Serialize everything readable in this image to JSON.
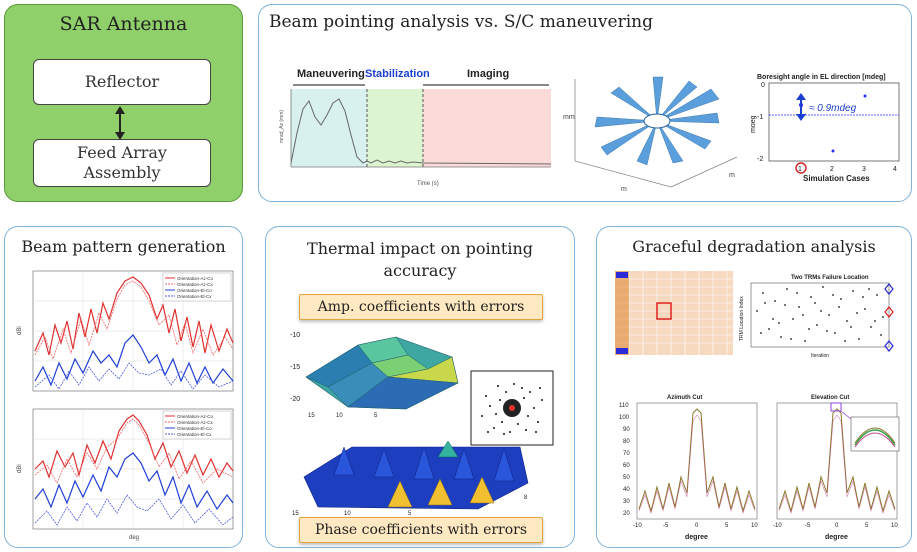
{
  "sar": {
    "title": "SAR Antenna",
    "reflector": "Reflector",
    "feed_line1": "Feed Array",
    "feed_line2": "Assembly"
  },
  "beam_pointing": {
    "title": "Beam pointing analysis vs. S/C maneuvering",
    "phases": [
      "Maneuvering",
      "Stabilization",
      "Imaging"
    ],
    "time_xlabel": "Time (s)",
    "time_ylabel": "mrad_Az (mm)",
    "plot3d_zlabel": "mm",
    "plot3d_xlabel": "m",
    "plot3d_ylabel": "m",
    "boresight_title": "Boresight angle in EL direction [mdeg]",
    "boresight_annotation": "≈ 0.9mdeg",
    "boresight_xlabel": "Simulation Cases",
    "boresight_ylabel": "mdeg",
    "boresight_ticks_x": [
      "1",
      "2",
      "3",
      "4"
    ],
    "boresight_ticks_y": [
      "0",
      "-1",
      "-2"
    ],
    "highlighted_case": "1"
  },
  "beam_pattern": {
    "title": "Beam pattern generation",
    "xlabel": "deg",
    "ylabel": "dBi",
    "legend_top": [
      "Orientation-Az-Co",
      "Orientation-Az-Cx",
      "Orientation-El-Co",
      "Orientation-El-Cx"
    ],
    "legend_bottom": [
      "Orientation-Az-Co",
      "Orientation-Az-Cx",
      "Orientation-El-Co",
      "Orientation-El-Cx"
    ]
  },
  "thermal": {
    "title_line1": "Thermal impact on pointing",
    "title_line2": "accuracy",
    "amp_label": "Amp. coefficients with errors",
    "phase_label": "Phase coefficients with errors"
  },
  "graceful": {
    "title": "Graceful degradation analysis",
    "failure_title": "Two TRMs Failure Location",
    "failure_xlabel": "Iteration",
    "failure_ylabel": "TRM Location Index",
    "azimuth_title": "Azimuth Cut",
    "elevation_title": "Elevation Cut",
    "cut_xlabel": "degree",
    "cut_yticks": [
      "110",
      "100",
      "90",
      "80",
      "70",
      "60",
      "50",
      "40",
      "30",
      "20"
    ],
    "cut_xticks": [
      "-10",
      "-5",
      "0",
      "5",
      "10"
    ]
  },
  "colors": {
    "panel_border": "#7fb3d8",
    "sar_fill": "#8fd06a",
    "stabilization_text": "#1a3fd1",
    "tag_fill": "#ffe9c2"
  }
}
